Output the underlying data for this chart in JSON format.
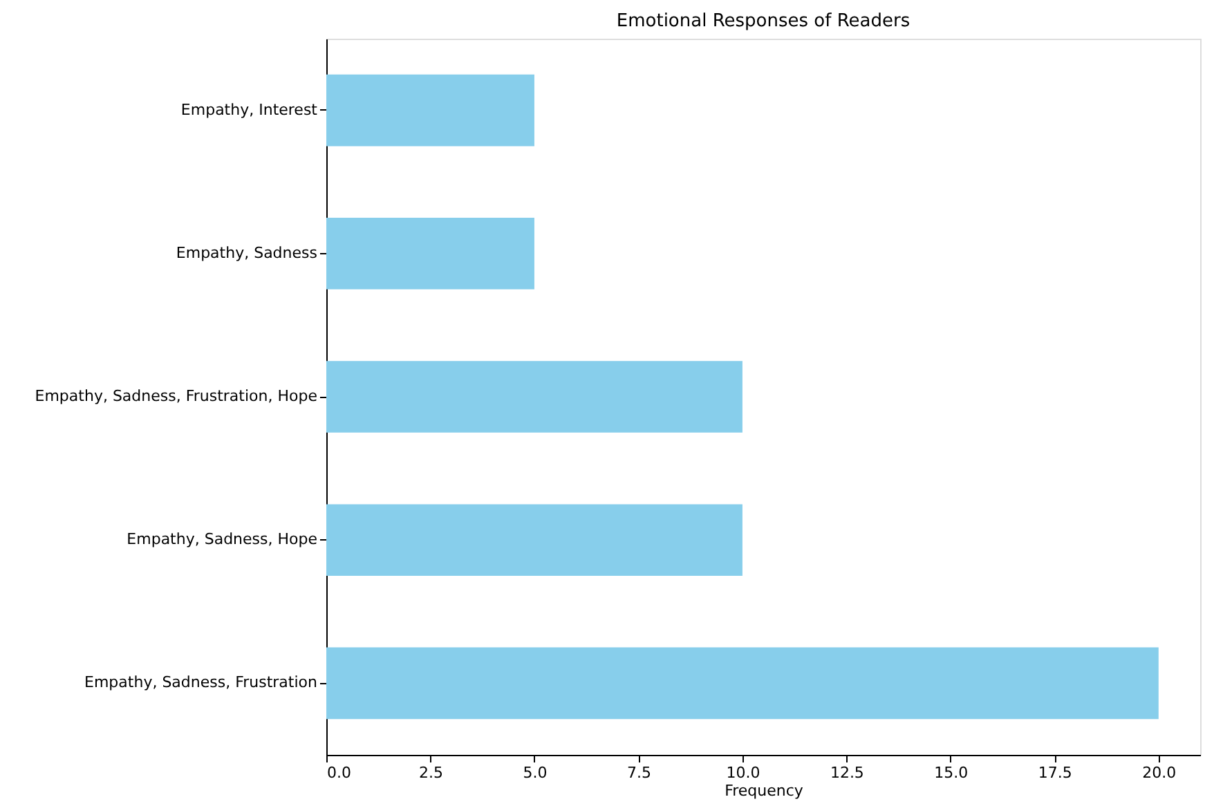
{
  "chart_data": {
    "type": "bar",
    "orientation": "horizontal",
    "title": "Emotional Responses of Readers",
    "xlabel": "Frequency",
    "categories": [
      "Empathy, Interest",
      "Empathy, Sadness",
      "Empathy, Sadness, Frustration, Hope",
      "Empathy, Sadness, Hope",
      "Empathy, Sadness, Frustration"
    ],
    "values": [
      5,
      5,
      10,
      10,
      20
    ],
    "color": "#87ceeb",
    "xlim": [
      0,
      21
    ],
    "xticks": [
      {
        "value": 0,
        "label": "0.0"
      },
      {
        "value": 2.5,
        "label": "2.5"
      },
      {
        "value": 5,
        "label": "5.0"
      },
      {
        "value": 7.5,
        "label": "7.5"
      },
      {
        "value": 10,
        "label": "10.0"
      },
      {
        "value": 12.5,
        "label": "12.5"
      },
      {
        "value": 15,
        "label": "15.0"
      },
      {
        "value": 17.5,
        "label": "17.5"
      },
      {
        "value": 20,
        "label": "20.0"
      }
    ]
  }
}
